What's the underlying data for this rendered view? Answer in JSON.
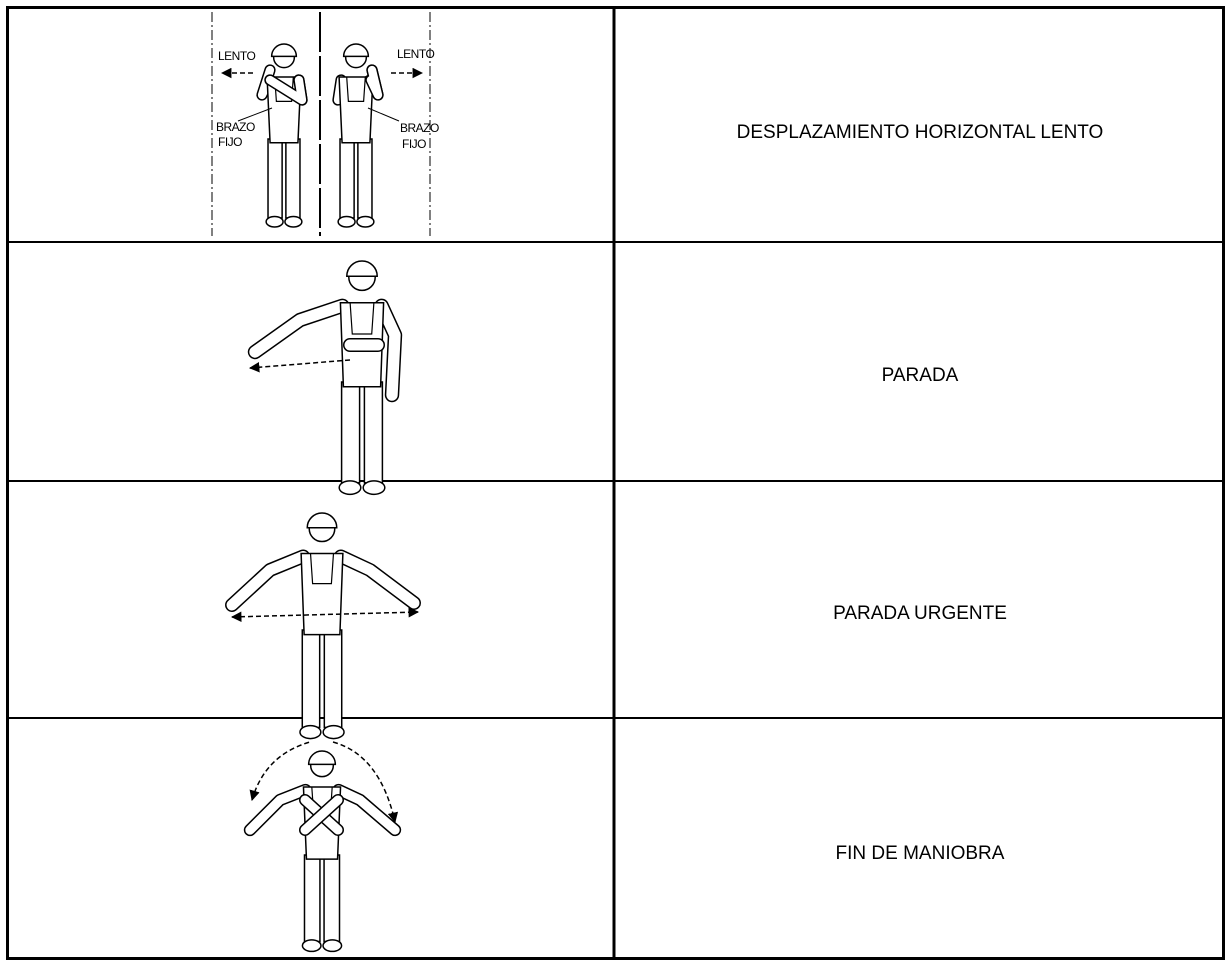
{
  "table": {
    "rows": [
      {
        "figure_texts": [
          "LENTO",
          "BRAZO",
          "FIJO",
          "LENTO",
          "BRAZO",
          "FIJO"
        ],
        "label": "DESPLAZAMIENTO HORIZONTAL LENTO"
      },
      {
        "label": "PARADA"
      },
      {
        "label": "PARADA URGENTE"
      },
      {
        "label": "FIN DE MANIOBRA"
      }
    ]
  }
}
